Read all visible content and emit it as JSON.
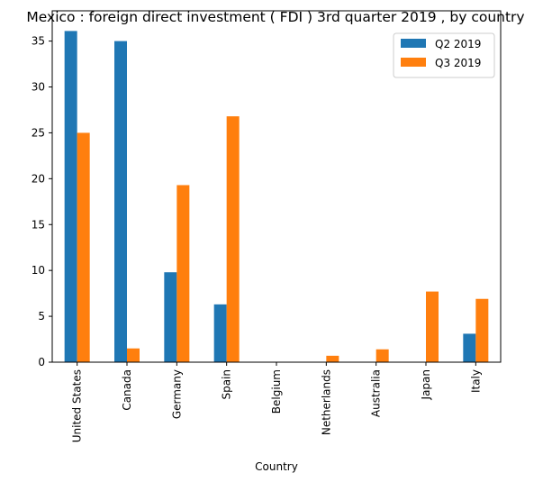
{
  "chart_data": {
    "type": "bar",
    "title": "Mexico : foreign direct investment ( FDI ) 3rd quarter 2019 , by country",
    "xlabel": "Country",
    "ylabel": "",
    "ylim": [
      0,
      38.3
    ],
    "yticks": [
      0,
      5,
      10,
      15,
      20,
      25,
      30,
      35
    ],
    "grid": false,
    "legend_position": "top-right",
    "categories": [
      "United States",
      "Canada",
      "Germany",
      "Spain",
      "Belgium",
      "Netherlands",
      "Australia",
      "Japan",
      "Italy"
    ],
    "series": [
      {
        "name": "Q2 2019",
        "color": "#1f77b4",
        "values": [
          36.1,
          35.0,
          9.8,
          6.3,
          0,
          0,
          0,
          0,
          3.1
        ]
      },
      {
        "name": "Q3 2019",
        "color": "#ff7f0e",
        "values": [
          25.0,
          1.5,
          19.3,
          26.8,
          0,
          0.7,
          1.4,
          7.7,
          6.9
        ]
      }
    ]
  }
}
